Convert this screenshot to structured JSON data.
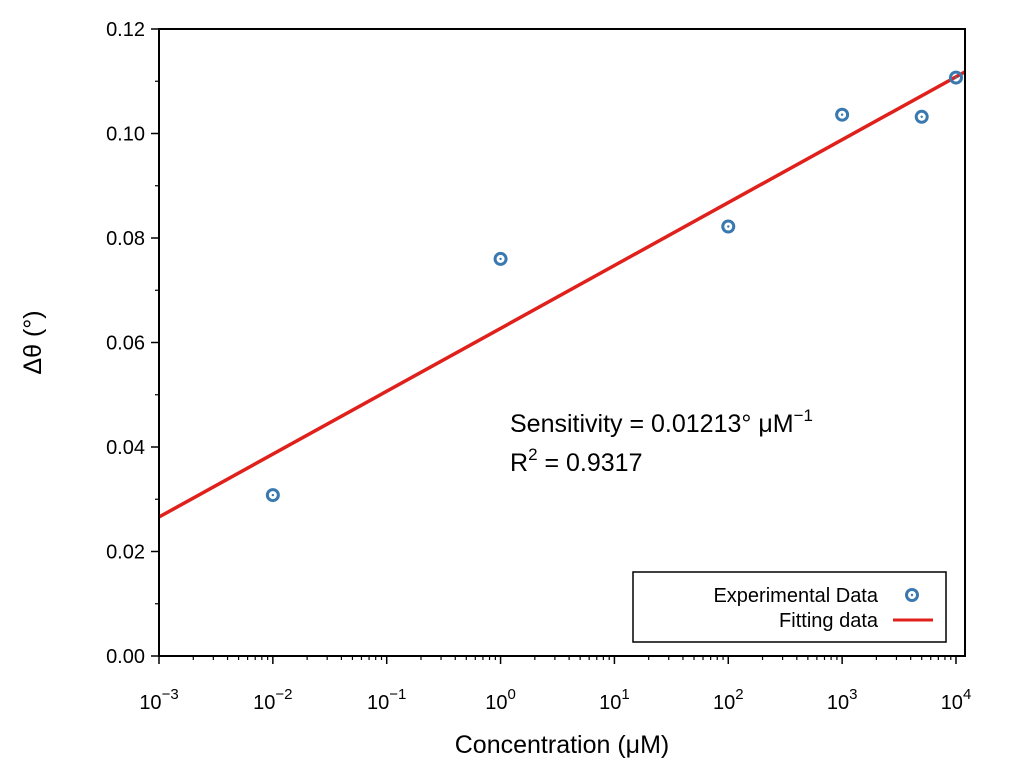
{
  "chart_data": {
    "type": "scatter",
    "x_scale": "log",
    "xlabel": "Concentration (μM)",
    "ylabel": "Δθ (°)",
    "xlim": [
      0.001,
      12000
    ],
    "ylim": [
      0,
      0.12
    ],
    "x_ticks": [
      {
        "value": 0.001,
        "base": "10",
        "exp": "−3"
      },
      {
        "value": 0.01,
        "base": "10",
        "exp": "−2"
      },
      {
        "value": 0.1,
        "base": "10",
        "exp": "−1"
      },
      {
        "value": 1,
        "base": "10",
        "exp": "0"
      },
      {
        "value": 10,
        "base": "10",
        "exp": "1"
      },
      {
        "value": 100,
        "base": "10",
        "exp": "2"
      },
      {
        "value": 1000,
        "base": "10",
        "exp": "3"
      },
      {
        "value": 10000,
        "base": "10",
        "exp": "4"
      }
    ],
    "y_ticks": [
      {
        "value": 0.0,
        "label": "0.00"
      },
      {
        "value": 0.02,
        "label": "0.02"
      },
      {
        "value": 0.04,
        "label": "0.04"
      },
      {
        "value": 0.06,
        "label": "0.06"
      },
      {
        "value": 0.08,
        "label": "0.08"
      },
      {
        "value": 0.1,
        "label": "0.10"
      },
      {
        "value": 0.12,
        "label": "0.12"
      }
    ],
    "series": [
      {
        "name": "Experimental Data",
        "kind": "scatter",
        "color": "#3a78b0",
        "x": [
          0.01,
          1,
          100,
          1000,
          5000,
          10000
        ],
        "y": [
          0.0308,
          0.076,
          0.0822,
          0.1036,
          0.1032,
          0.1107
        ]
      },
      {
        "name": "Fitting data",
        "kind": "line",
        "color": "#e0201b",
        "x": [
          0.001,
          12000
        ],
        "y": [
          0.0266,
          0.1118
        ]
      }
    ],
    "annotations": {
      "sensitivity_prefix": "Sensitivity = 0.01213° μM",
      "sensitivity_exp": "−1",
      "r2_base": "R",
      "r2_exp": "2",
      "r2_value": " = 0.9317"
    },
    "legend_position": "bottom-right",
    "grid": false
  }
}
